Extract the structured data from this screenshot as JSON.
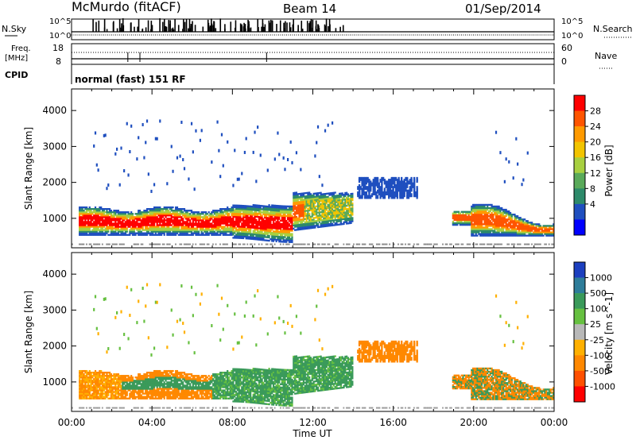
{
  "header": {
    "station": "McMurdo (fitACF)",
    "beam": "Beam 14",
    "date": "01/Sep/2014"
  },
  "summary_panel": {
    "nsky_label": "N.Sky",
    "nsky_ticks": [
      "10^5",
      "10^0"
    ],
    "nsearch_label": "N.Search",
    "nsearch_ticks": [
      "10^5",
      "10^0"
    ],
    "freq_label": "Freq.",
    "freq_unit": "[MHz]",
    "freq_ticks": [
      "18",
      "8"
    ],
    "nave_label": "Nave",
    "nave_ticks": [
      "60",
      "0"
    ],
    "cpid_label": "CPID",
    "cpid_value": "normal (fast) 151 RF"
  },
  "chart_data": [
    {
      "type": "heatmap",
      "name": "power",
      "ylabel": "Slant Range [km]",
      "xlabel": "Time UT",
      "x_ticks": [
        "00:00",
        "04:00",
        "08:00",
        "12:00",
        "16:00",
        "20:00",
        "00:00"
      ],
      "x_range_hours": [
        0,
        24
      ],
      "y_ticks": [
        "1000",
        "2000",
        "3000",
        "4000"
      ],
      "y_tick_values": [
        1000,
        2000,
        3000,
        4000
      ],
      "ylim": [
        180,
        4600
      ],
      "colorbar": {
        "label": "Power [dB]",
        "labels": [
          "28",
          "24",
          "20",
          "16",
          "12",
          "8",
          "4"
        ],
        "colors": [
          "#ff0000",
          "#ff5500",
          "#ff9a00",
          "#f2c400",
          "#a8d040",
          "#5aaa5a",
          "#2d8a6a",
          "#1f4fbf",
          "#0000ff"
        ]
      }
    },
    {
      "type": "heatmap",
      "name": "velocity",
      "ylabel": "Slant Range [km]",
      "xlabel": "Time UT",
      "x_ticks": [
        "00:00",
        "04:00",
        "08:00",
        "12:00",
        "16:00",
        "20:00",
        "00:00"
      ],
      "x_range_hours": [
        0,
        24
      ],
      "y_ticks": [
        "1000",
        "2000",
        "3000",
        "4000"
      ],
      "y_tick_values": [
        1000,
        2000,
        3000,
        4000
      ],
      "ylim": [
        180,
        4600
      ],
      "colorbar": {
        "label": "Velocity [m s^-1]",
        "labels": [
          "1000",
          "500",
          "100",
          "25",
          "-25",
          "-100",
          "-500",
          "-1000"
        ],
        "colors": [
          "#1c3fbf",
          "#2e7d9a",
          "#3a9a5a",
          "#66c040",
          "#b8b8b8",
          "#ffb000",
          "#ff8800",
          "#ff5000",
          "#ff0000"
        ]
      }
    }
  ],
  "footer": {
    "xlabel": "Time UT"
  }
}
